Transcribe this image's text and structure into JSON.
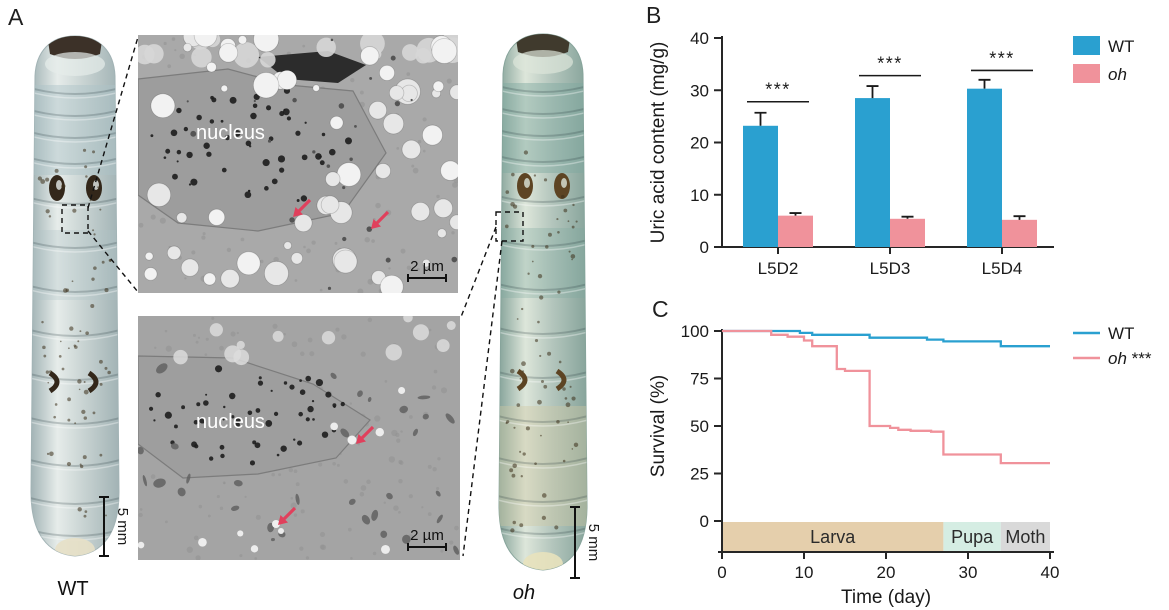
{
  "figure": {
    "panel_a": {
      "label": "A",
      "specimens": [
        {
          "name": "wt-larva",
          "label": "WT",
          "scale_bar": "5 mm"
        },
        {
          "name": "oh-larva",
          "label": "oh",
          "scale_bar": "5 mm"
        }
      ],
      "micrographs": [
        {
          "name": "wt-epidermis-tem",
          "annotation": "nucleus",
          "scale_bar": "2 µm"
        },
        {
          "name": "oh-epidermis-tem",
          "annotation": "nucleus",
          "scale_bar": "2 µm"
        }
      ]
    },
    "panel_b": {
      "label": "B"
    },
    "panel_c": {
      "label": "C"
    }
  },
  "colors": {
    "wt_blue": "#2AA0D0",
    "oh_pink": "#F0929B",
    "arrow_red": "#E0405C",
    "axis_black": "#262626",
    "larva_band": "#E5CFAC",
    "pupa_band": "#D5EDE3",
    "moth_band": "#D9D9D9"
  },
  "chart_data": [
    {
      "type": "bar",
      "panel": "B",
      "title": "",
      "xlabel": "",
      "ylabel": "Uric acid content (mg/g)",
      "ylim": [
        0,
        40
      ],
      "yticks": [
        0,
        10,
        20,
        30,
        40
      ],
      "categories": [
        "L5D2",
        "L5D3",
        "L5D4"
      ],
      "series": [
        {
          "name": "WT",
          "color": "#2AA0D0",
          "values": [
            23.2,
            28.5,
            30.3
          ],
          "errors": [
            2.5,
            2.3,
            1.7
          ]
        },
        {
          "name": "oh",
          "color": "#F0929B",
          "values": [
            6.0,
            5.4,
            5.2
          ],
          "errors": [
            0.5,
            0.4,
            0.7
          ]
        }
      ],
      "significance": [
        {
          "category": "L5D2",
          "label": "***",
          "y": 27.8
        },
        {
          "category": "L5D3",
          "label": "***",
          "y": 32.8
        },
        {
          "category": "L5D4",
          "label": "***",
          "y": 33.8
        }
      ],
      "legend": [
        {
          "label": "WT",
          "italic": false,
          "suffix": ""
        },
        {
          "label": "oh",
          "italic": true,
          "suffix": ""
        }
      ],
      "legend_position": "right",
      "grid": false
    },
    {
      "type": "line",
      "panel": "C",
      "title": "",
      "xlabel": "Time (day)",
      "ylabel": "Survival (%)",
      "xlim": [
        0,
        40
      ],
      "ylim": [
        0,
        100
      ],
      "xticks": [
        0,
        10,
        20,
        30,
        40
      ],
      "yticks": [
        0,
        25,
        50,
        75,
        100
      ],
      "series": [
        {
          "name": "WT",
          "color": "#2AA0D0",
          "step": true,
          "points": [
            [
              0,
              100
            ],
            [
              9.5,
              100
            ],
            [
              9.5,
              99
            ],
            [
              11,
              99
            ],
            [
              11,
              98
            ],
            [
              18,
              98
            ],
            [
              18,
              96.5
            ],
            [
              25,
              96.5
            ],
            [
              25,
              95.5
            ],
            [
              27,
              95.5
            ],
            [
              27,
              94.5
            ],
            [
              34,
              94.5
            ],
            [
              34,
              92
            ],
            [
              40,
              92
            ]
          ]
        },
        {
          "name": "oh",
          "color": "#F0929B",
          "step": true,
          "points": [
            [
              0,
              100
            ],
            [
              6,
              100
            ],
            [
              6,
              98
            ],
            [
              8,
              98
            ],
            [
              8,
              97
            ],
            [
              10,
              97
            ],
            [
              10,
              95
            ],
            [
              11,
              95
            ],
            [
              11,
              92
            ],
            [
              14,
              92
            ],
            [
              14,
              80
            ],
            [
              15,
              80
            ],
            [
              15,
              79
            ],
            [
              18,
              79
            ],
            [
              18,
              50
            ],
            [
              20.5,
              50
            ],
            [
              20.5,
              49
            ],
            [
              21.5,
              49
            ],
            [
              21.5,
              48
            ],
            [
              23,
              48
            ],
            [
              23,
              47.5
            ],
            [
              25.5,
              47.5
            ],
            [
              25.5,
              47
            ],
            [
              27,
              47
            ],
            [
              27,
              35
            ],
            [
              34,
              35
            ],
            [
              34,
              30.5
            ],
            [
              40,
              30.5
            ]
          ]
        }
      ],
      "phases": [
        {
          "label": "Larva",
          "start": 0,
          "end": 27,
          "color": "#E5CFAC"
        },
        {
          "label": "Pupa",
          "start": 27,
          "end": 34,
          "color": "#D5EDE3"
        },
        {
          "label": "Moth",
          "start": 34,
          "end": 40,
          "color": "#D9D9D9"
        }
      ],
      "legend": [
        {
          "label": "WT",
          "italic": false,
          "suffix": ""
        },
        {
          "label": "oh",
          "italic": true,
          "suffix": " ***"
        }
      ],
      "legend_position": "right",
      "grid": false
    }
  ]
}
